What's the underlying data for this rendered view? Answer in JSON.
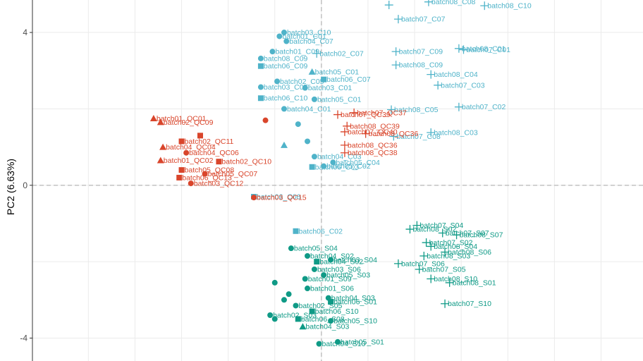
{
  "colors": {
    "qc": "#d9452b",
    "control": "#4fb3c9",
    "sample": "#0f9a86",
    "grid": "#ebebeb",
    "zero_line": "#bdbdbd",
    "frame": "#333333"
  },
  "chart_data": {
    "type": "scatter",
    "title": "",
    "xlabel": "",
    "ylabel": "PC2 (6.63%)",
    "xlim": [
      -6.2,
      6.9
    ],
    "ylim": [
      -4.6,
      4.85
    ],
    "y_ticks": [
      4,
      0,
      -4
    ],
    "y_tick_labels": [
      "4",
      "0",
      "-4"
    ],
    "x_gridlines": [
      -5,
      -4,
      -3,
      -2,
      -1,
      0,
      1,
      2,
      3,
      4,
      5,
      6
    ],
    "y_gridlines": [
      -4,
      -2,
      0,
      2,
      4
    ],
    "reference_lines": {
      "x": 0,
      "y": 0,
      "style": "dashed"
    },
    "grid": true,
    "legend": "none",
    "groups": [
      {
        "name": "control",
        "points": [
          {
            "x": 2.3,
            "y": 4.8,
            "label": "batch08_C08",
            "shape": "cross"
          },
          {
            "x": 3.5,
            "y": 4.7,
            "label": "batch08_C10",
            "shape": "cross"
          },
          {
            "x": 1.45,
            "y": 4.72,
            "label": "",
            "shape": "cross"
          },
          {
            "x": 1.65,
            "y": 4.35,
            "label": "batch07_C07",
            "shape": "cross"
          },
          {
            "x": -0.8,
            "y": 4.0,
            "label": "batch03_C10",
            "shape": "circle"
          },
          {
            "x": -0.9,
            "y": 3.9,
            "label": "batch01_C01",
            "shape": "circle"
          },
          {
            "x": -0.75,
            "y": 3.77,
            "label": "batch04_C07",
            "shape": "circle"
          },
          {
            "x": -1.05,
            "y": 3.5,
            "label": "batch01_C09",
            "shape": "circle"
          },
          {
            "x": -0.1,
            "y": 3.45,
            "label": "batch02_C07",
            "shape": "cross"
          },
          {
            "x": 1.6,
            "y": 3.5,
            "label": "batch07_C09",
            "shape": "cross"
          },
          {
            "x": 2.95,
            "y": 3.58,
            "label": "batch08_C01",
            "shape": "cross"
          },
          {
            "x": 3.05,
            "y": 3.55,
            "label": "batch07_C01",
            "shape": "cross"
          },
          {
            "x": -1.3,
            "y": 3.32,
            "label": "batch08_C09",
            "shape": "circle"
          },
          {
            "x": 1.6,
            "y": 3.15,
            "label": "batch08_C09",
            "shape": "cross"
          },
          {
            "x": -1.3,
            "y": 3.12,
            "label": "batch06_C09",
            "shape": "square"
          },
          {
            "x": -0.2,
            "y": 2.97,
            "label": "batch05_C01",
            "shape": "triangle"
          },
          {
            "x": 0.05,
            "y": 2.77,
            "label": "batch06_C07",
            "shape": "square"
          },
          {
            "x": 2.35,
            "y": 2.9,
            "label": "batch08_C04",
            "shape": "cross"
          },
          {
            "x": -0.95,
            "y": 2.72,
            "label": "batch02_C05",
            "shape": "circle"
          },
          {
            "x": 2.5,
            "y": 2.62,
            "label": "batch07_C03",
            "shape": "cross"
          },
          {
            "x": -1.3,
            "y": 2.57,
            "label": "batch03_C05",
            "shape": "circle"
          },
          {
            "x": -0.35,
            "y": 2.55,
            "label": "batch03_C01",
            "shape": "circle"
          },
          {
            "x": -1.3,
            "y": 2.28,
            "label": "batch06_C10",
            "shape": "square"
          },
          {
            "x": -0.15,
            "y": 2.25,
            "label": "batch05_C01",
            "shape": "circle"
          },
          {
            "x": 2.95,
            "y": 2.05,
            "label": "batch07_C02",
            "shape": "cross"
          },
          {
            "x": 1.5,
            "y": 1.98,
            "label": "batch08_C05",
            "shape": "cross"
          },
          {
            "x": -0.8,
            "y": 2.0,
            "label": "batch04_C01",
            "shape": "circle"
          },
          {
            "x": 2.35,
            "y": 1.38,
            "label": "batch08_C03",
            "shape": "cross"
          },
          {
            "x": 1.55,
            "y": 1.28,
            "label": "batch07_C08",
            "shape": "cross"
          },
          {
            "x": -0.3,
            "y": 1.15,
            "label": "",
            "shape": "circle"
          },
          {
            "x": -0.15,
            "y": 0.75,
            "label": "batch04_C03",
            "shape": "circle"
          },
          {
            "x": 0.25,
            "y": 0.6,
            "label": "batch05_C04",
            "shape": "circle"
          },
          {
            "x": -0.2,
            "y": 0.48,
            "label": "batch06_C03",
            "shape": "square"
          },
          {
            "x": 0.05,
            "y": 0.5,
            "label": "batch05_C02",
            "shape": "circle"
          },
          {
            "x": -0.8,
            "y": 1.05,
            "label": "",
            "shape": "triangle"
          },
          {
            "x": -0.5,
            "y": 1.6,
            "label": "",
            "shape": "circle"
          },
          {
            "x": -1.45,
            "y": -0.3,
            "label": "batch06_C06",
            "shape": "square"
          },
          {
            "x": -0.55,
            "y": -1.2,
            "label": "batch06_C02",
            "shape": "square"
          }
        ]
      },
      {
        "name": "qc",
        "points": [
          {
            "x": -3.6,
            "y": 1.75,
            "label": "batch01_QC01",
            "shape": "triangle"
          },
          {
            "x": -3.45,
            "y": 1.65,
            "label": "batch02_QC09",
            "shape": "triangle"
          },
          {
            "x": 0.35,
            "y": 1.85,
            "label": "batch07_QC39",
            "shape": "cross"
          },
          {
            "x": 0.7,
            "y": 1.9,
            "label": "batch07_QC37",
            "shape": "cross"
          },
          {
            "x": 0.55,
            "y": 1.55,
            "label": "batch08_QC39",
            "shape": "cross"
          },
          {
            "x": 0.5,
            "y": 1.4,
            "label": "batch07_QC40",
            "shape": "cross"
          },
          {
            "x": 0.95,
            "y": 1.35,
            "label": "batch08_QC36",
            "shape": "cross"
          },
          {
            "x": 0.5,
            "y": 1.05,
            "label": "batch08_QC36",
            "shape": "cross"
          },
          {
            "x": 0.5,
            "y": 0.85,
            "label": "batch08_QC38",
            "shape": "cross"
          },
          {
            "x": -3.4,
            "y": 1.0,
            "label": "batch04_QC04",
            "shape": "triangle"
          },
          {
            "x": -3.0,
            "y": 1.15,
            "label": "batch02_QC11",
            "shape": "square"
          },
          {
            "x": -2.9,
            "y": 0.85,
            "label": "batch04_QC06",
            "shape": "circle"
          },
          {
            "x": -3.45,
            "y": 0.65,
            "label": "batch01_QC02",
            "shape": "triangle"
          },
          {
            "x": -3.0,
            "y": 0.4,
            "label": "batch05_QC08",
            "shape": "square"
          },
          {
            "x": -3.05,
            "y": 0.2,
            "label": "batch06_QC13",
            "shape": "square"
          },
          {
            "x": -2.8,
            "y": 0.05,
            "label": "batch03_QC12",
            "shape": "circle"
          },
          {
            "x": -2.5,
            "y": 0.3,
            "label": "batch05_QC07",
            "shape": "circle"
          },
          {
            "x": -2.2,
            "y": 0.62,
            "label": "batch02_QC10",
            "shape": "square"
          },
          {
            "x": -1.45,
            "y": -0.32,
            "label": "batch03_QC15",
            "shape": "circle"
          },
          {
            "x": -1.2,
            "y": 1.7,
            "label": "",
            "shape": "circle"
          },
          {
            "x": -2.6,
            "y": 1.3,
            "label": "",
            "shape": "square"
          }
        ]
      },
      {
        "name": "sample",
        "points": [
          {
            "x": 2.05,
            "y": -1.05,
            "label": "batch07_S04",
            "shape": "cross"
          },
          {
            "x": 1.9,
            "y": -1.15,
            "label": "batch08_S02",
            "shape": "cross"
          },
          {
            "x": 2.6,
            "y": -1.25,
            "label": "batch07_S07",
            "shape": "cross"
          },
          {
            "x": 2.9,
            "y": -1.3,
            "label": "batch08_S07",
            "shape": "cross"
          },
          {
            "x": 2.25,
            "y": -1.5,
            "label": "batch07_S02",
            "shape": "cross"
          },
          {
            "x": 2.35,
            "y": -1.6,
            "label": "batch08_S04",
            "shape": "cross"
          },
          {
            "x": 2.65,
            "y": -1.75,
            "label": "batch08_S06",
            "shape": "cross"
          },
          {
            "x": 2.2,
            "y": -1.85,
            "label": "batch08_S03",
            "shape": "cross"
          },
          {
            "x": 1.65,
            "y": -2.05,
            "label": "batch07_S06",
            "shape": "cross"
          },
          {
            "x": 2.1,
            "y": -2.2,
            "label": "batch07_S05",
            "shape": "cross"
          },
          {
            "x": 2.35,
            "y": -2.45,
            "label": "batch08_S10",
            "shape": "cross"
          },
          {
            "x": 2.75,
            "y": -2.55,
            "label": "batch08_S01",
            "shape": "cross"
          },
          {
            "x": 2.65,
            "y": -3.1,
            "label": "batch07_S10",
            "shape": "cross"
          },
          {
            "x": -0.65,
            "y": -1.65,
            "label": "batch05_S04",
            "shape": "circle"
          },
          {
            "x": -0.3,
            "y": -1.85,
            "label": "batch04_S02",
            "shape": "circle"
          },
          {
            "x": 0.2,
            "y": -1.95,
            "label": "batch03_S04",
            "shape": "circle"
          },
          {
            "x": -0.1,
            "y": -2.0,
            "label": "batch04_S02",
            "shape": "square"
          },
          {
            "x": -0.15,
            "y": -2.2,
            "label": "batch03_S06",
            "shape": "circle"
          },
          {
            "x": 0.05,
            "y": -2.35,
            "label": "batch05_S03",
            "shape": "circle"
          },
          {
            "x": -0.35,
            "y": -2.45,
            "label": "batch01_S09",
            "shape": "circle"
          },
          {
            "x": -0.3,
            "y": -2.7,
            "label": "batch01_S06",
            "shape": "circle"
          },
          {
            "x": 0.15,
            "y": -2.95,
            "label": "batch04_S03",
            "shape": "circle"
          },
          {
            "x": 0.2,
            "y": -3.05,
            "label": "batch06_S01",
            "shape": "square"
          },
          {
            "x": -0.55,
            "y": -3.15,
            "label": "batch02_S05",
            "shape": "circle"
          },
          {
            "x": -0.2,
            "y": -3.3,
            "label": "batch06_S10",
            "shape": "square"
          },
          {
            "x": -1.1,
            "y": -3.4,
            "label": "batch02_S03",
            "shape": "circle"
          },
          {
            "x": -0.5,
            "y": -3.5,
            "label": "batch06_S08",
            "shape": "square"
          },
          {
            "x": 0.2,
            "y": -3.55,
            "label": "batch05_S10",
            "shape": "circle"
          },
          {
            "x": -0.4,
            "y": -3.7,
            "label": "batch04_S03",
            "shape": "triangle"
          },
          {
            "x": -0.05,
            "y": -4.15,
            "label": "batch04_S10",
            "shape": "circle"
          },
          {
            "x": 0.35,
            "y": -4.1,
            "label": "batch05_S01",
            "shape": "circle"
          },
          {
            "x": -1.0,
            "y": -2.55,
            "label": "",
            "shape": "circle"
          },
          {
            "x": -0.7,
            "y": -2.85,
            "label": "",
            "shape": "circle"
          },
          {
            "x": -1.0,
            "y": -3.5,
            "label": "",
            "shape": "circle"
          },
          {
            "x": -0.8,
            "y": -3.0,
            "label": "",
            "shape": "circle"
          }
        ]
      }
    ]
  }
}
